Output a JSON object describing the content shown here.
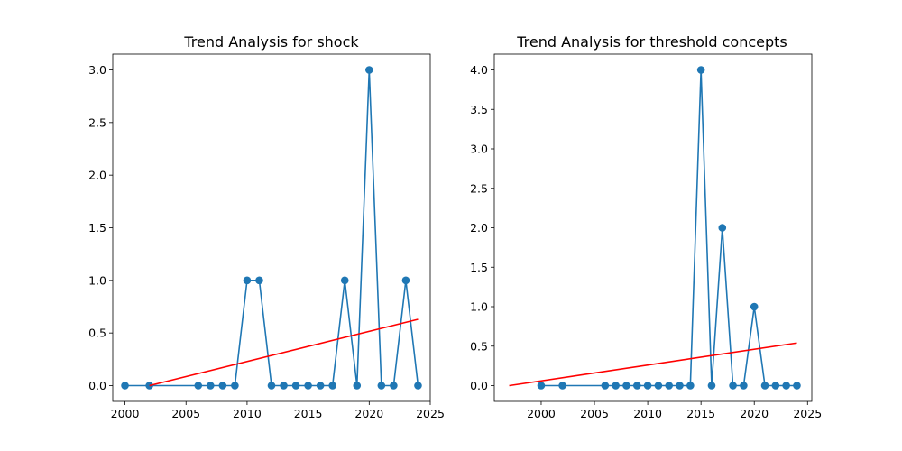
{
  "chart_data": [
    {
      "type": "line",
      "title": "Trend Analysis for shock",
      "xlabel": "",
      "ylabel": "",
      "xlim": [
        1999,
        2025
      ],
      "ylim": [
        -0.15,
        3.15
      ],
      "xticks": [
        2000,
        2005,
        2010,
        2015,
        2020,
        2025
      ],
      "yticks": [
        0.0,
        0.5,
        1.0,
        1.5,
        2.0,
        2.5,
        3.0
      ],
      "grid": false,
      "series": [
        {
          "x": [
            2000,
            2002,
            2006,
            2007,
            2008,
            2009,
            2010,
            2011,
            2012,
            2013,
            2014,
            2015,
            2016,
            2017,
            2018,
            2019,
            2020,
            2021,
            2022,
            2023,
            2024
          ],
          "values": [
            0,
            0,
            0,
            0,
            0,
            0,
            1,
            1,
            0,
            0,
            0,
            0,
            0,
            0,
            1,
            0,
            3,
            0,
            0,
            1,
            0
          ],
          "color": "#1f77b4",
          "marker": "circle"
        }
      ],
      "trend_line": {
        "x": [
          2002,
          2024
        ],
        "values": [
          0.0,
          0.63
        ],
        "color": "#ff0000"
      }
    },
    {
      "type": "line",
      "title": "Trend Analysis for threshold concepts",
      "xlabel": "",
      "ylabel": "",
      "xlim": [
        1995.6,
        2025.4
      ],
      "ylim": [
        -0.2,
        4.2
      ],
      "xticks": [
        2000,
        2005,
        2010,
        2015,
        2020,
        2025
      ],
      "yticks": [
        0.0,
        0.5,
        1.0,
        1.5,
        2.0,
        2.5,
        3.0,
        3.5,
        4.0
      ],
      "grid": false,
      "series": [
        {
          "x": [
            2000,
            2002,
            2006,
            2007,
            2008,
            2009,
            2010,
            2011,
            2012,
            2013,
            2014,
            2015,
            2016,
            2017,
            2018,
            2019,
            2020,
            2021,
            2022,
            2023,
            2024
          ],
          "values": [
            0,
            0,
            0,
            0,
            0,
            0,
            0,
            0,
            0,
            0,
            0,
            4,
            0,
            2,
            0,
            0,
            1,
            0,
            0,
            0,
            0
          ],
          "color": "#1f77b4",
          "marker": "circle"
        }
      ],
      "trend_line": {
        "x": [
          1997,
          2024
        ],
        "values": [
          0.0,
          0.54
        ],
        "color": "#ff0000"
      }
    }
  ]
}
